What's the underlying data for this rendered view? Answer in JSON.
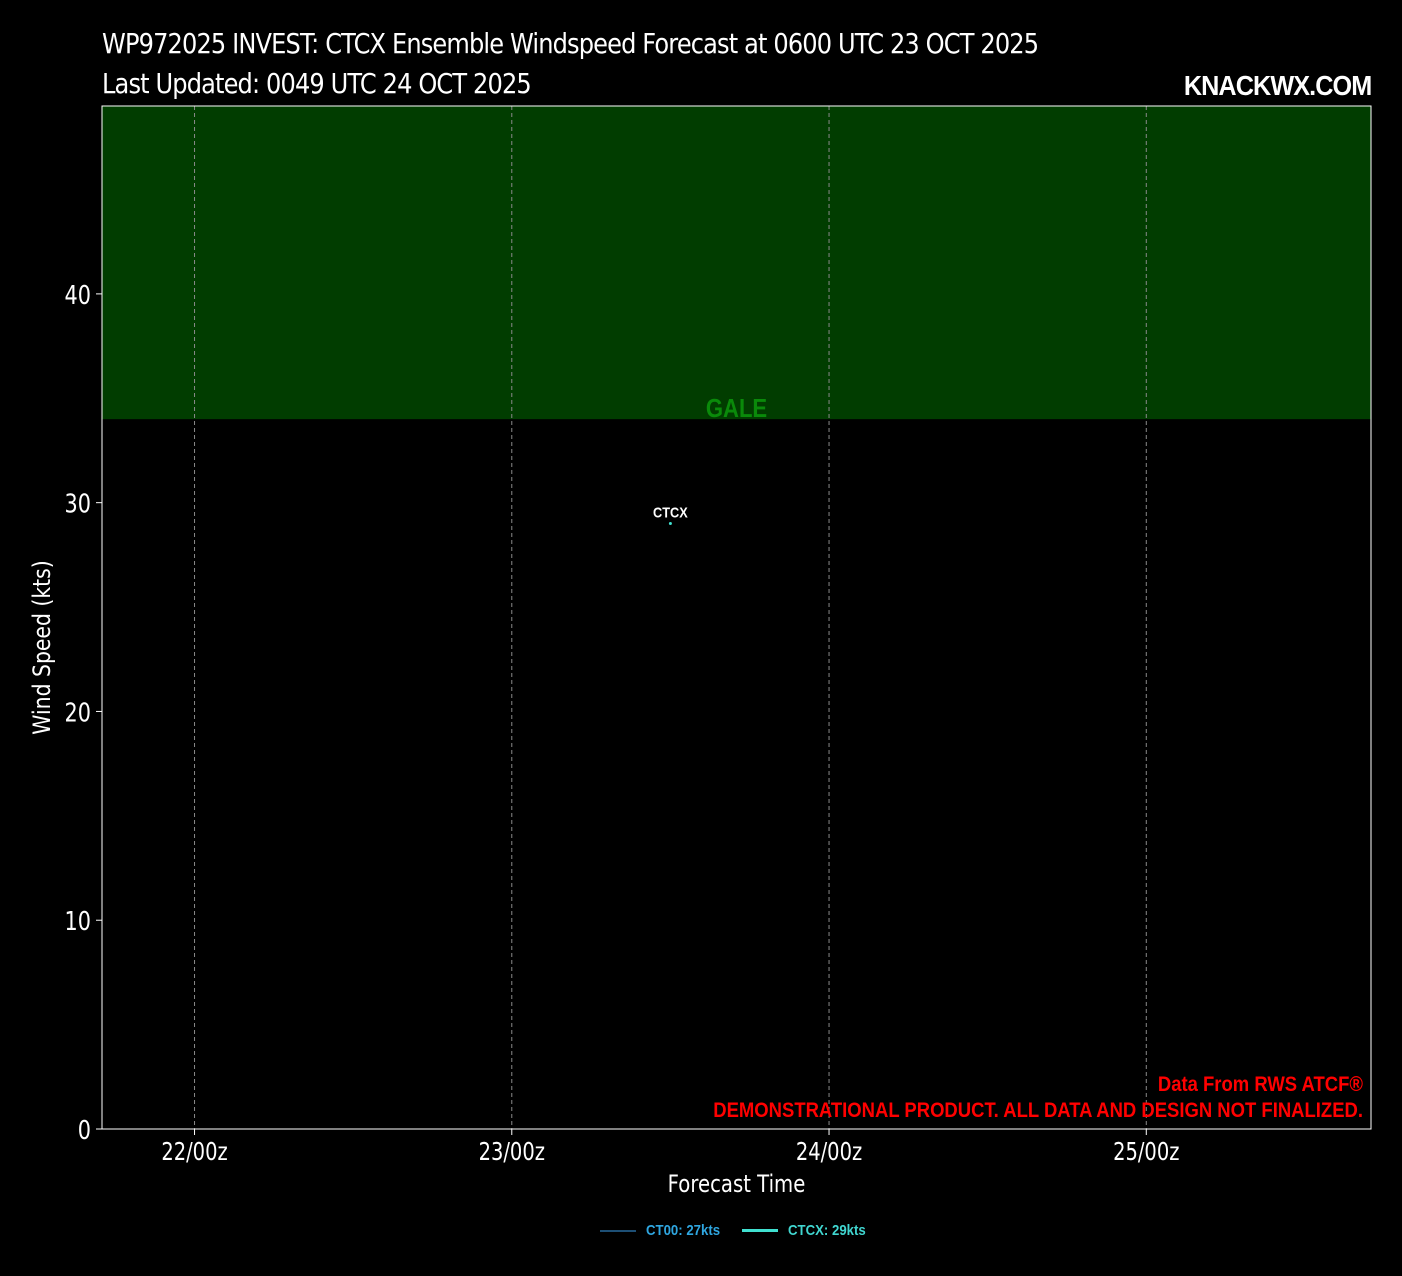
{
  "header": {
    "title": "WP972025 INVEST: CTCX Ensemble Windspeed Forecast at 0600 UTC 23 OCT 2025",
    "subtitle": "Last Updated: 0049 UTC 24 OCT 2025",
    "brand": "KNACKWX.COM"
  },
  "chart_data": {
    "type": "line",
    "title": "WP972025 INVEST: CTCX Ensemble Windspeed Forecast at 0600 UTC 23 OCT 2025",
    "subtitle": "Last Updated: 0049 UTC 24 OCT 2025",
    "xlabel": "Forecast Time",
    "ylabel": "Wind Speed (kts)",
    "x_ticks": [
      "22/00z",
      "23/00z",
      "24/00z",
      "25/00z"
    ],
    "xlim": [
      "21/17z",
      "25/17z"
    ],
    "ylim": [
      0,
      49
    ],
    "y_ticks": [
      0,
      10,
      20,
      30,
      40
    ],
    "grid": "x-dashed",
    "bands": [
      {
        "label": "GALE",
        "from": 34,
        "to": 49,
        "color": "#013d00",
        "label_color": "#0a8a0a"
      }
    ],
    "series": [
      {
        "name": "CT00",
        "legend_label": "CT00: 27kts",
        "points": [],
        "color": "#2b7bb9"
      },
      {
        "name": "CTCX",
        "legend_label": "CTCX: 29kts",
        "points": [
          {
            "x": "23/12z",
            "y": 29
          }
        ],
        "color": "#40e0d0",
        "point_label": "CTCX"
      }
    ],
    "annotations": [
      {
        "text": "Data From RWS ATCF®",
        "color": "#ff0000",
        "position": "bottom-right"
      },
      {
        "text": "DEMONSTRATIONAL PRODUCT. ALL DATA AND DESIGN NOT FINALIZED.",
        "color": "#ff0000",
        "position": "bottom-right"
      }
    ],
    "legend_position": "bottom-center"
  }
}
